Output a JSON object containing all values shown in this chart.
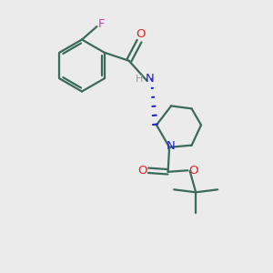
{
  "background_color": "#ebebeb",
  "bond_color": "#3a6b5a",
  "atom_colors": {
    "F": "#cc44aa",
    "O": "#dd2222",
    "N": "#2222cc",
    "H": "#999999",
    "C": "#3a6b5a"
  },
  "figsize": [
    3.0,
    3.0
  ],
  "dpi": 100
}
